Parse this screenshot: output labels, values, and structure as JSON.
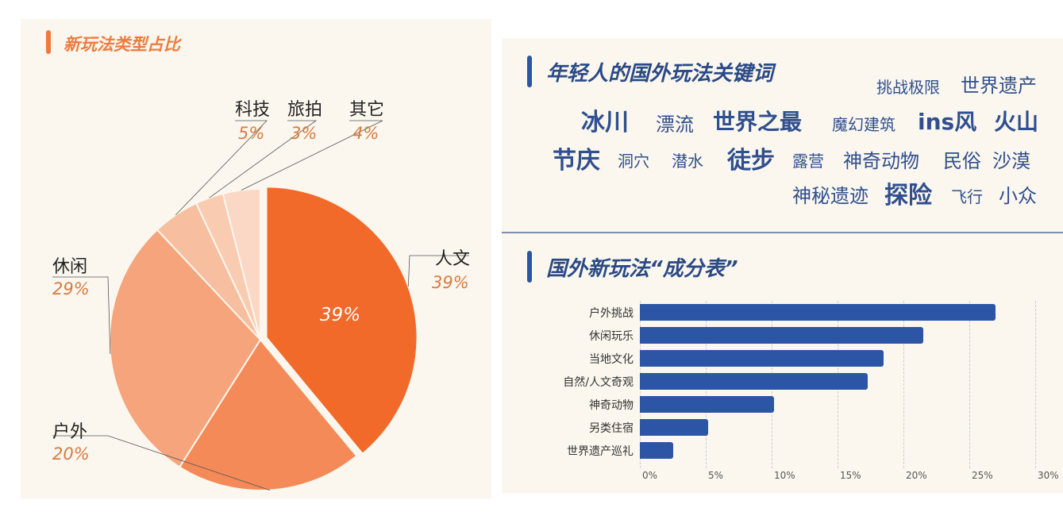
{
  "colors": {
    "pie_accent": "#f07a3c",
    "pie_label_pct": "#d97a3e",
    "bar_color": "#2d55a5",
    "kw_color": "#2f4f8f",
    "title_blue": "#2a4a86",
    "panel_bg": "#fbf7ee"
  },
  "left": {
    "title": "新玩法类型占比"
  },
  "right": {
    "keywords_title": "年轻人的国外玩法关键词",
    "keywords": [
      {
        "text": "挑战极限",
        "size": "s"
      },
      {
        "text": "世界遗产",
        "size": "m"
      },
      {
        "text": "冰川",
        "size": "xl"
      },
      {
        "text": "漂流",
        "size": "m"
      },
      {
        "text": "世界之最",
        "size": "l"
      },
      {
        "text": "魔幻建筑",
        "size": "s"
      },
      {
        "text": "ins风",
        "size": "l"
      },
      {
        "text": "火山",
        "size": "l"
      },
      {
        "text": "节庆",
        "size": "xl"
      },
      {
        "text": "洞穴",
        "size": "s"
      },
      {
        "text": "潜水",
        "size": "s"
      },
      {
        "text": "徒步",
        "size": "xl"
      },
      {
        "text": "露营",
        "size": "s"
      },
      {
        "text": "神奇动物",
        "size": "m"
      },
      {
        "text": "民俗",
        "size": "m"
      },
      {
        "text": "沙漠",
        "size": "m"
      },
      {
        "text": "神秘遗迹",
        "size": "m"
      },
      {
        "text": "探险",
        "size": "xl"
      },
      {
        "text": "飞行",
        "size": "s"
      },
      {
        "text": "小众",
        "size": "m"
      }
    ],
    "bar_title": "国外新玩法“成分表”"
  },
  "chart_data": [
    {
      "type": "pie",
      "title": "新玩法类型占比",
      "slices": [
        {
          "label": "人文",
          "value": 39,
          "display": "39%",
          "color": "#f26a2a"
        },
        {
          "label": "户外",
          "value": 20,
          "display": "20%",
          "color": "#f48a58"
        },
        {
          "label": "休闲",
          "value": 29,
          "display": "29%",
          "color": "#f6a47c"
        },
        {
          "label": "科技",
          "value": 5,
          "display": "5%",
          "color": "#f8bea0"
        },
        {
          "label": "旅拍",
          "value": 3,
          "display": "3%",
          "color": "#f9ccb2"
        },
        {
          "label": "其它",
          "value": 4,
          "display": "4%",
          "color": "#fad8c5"
        }
      ],
      "inner_label": "39%"
    },
    {
      "type": "bar",
      "orientation": "horizontal",
      "title": "国外新玩法“成分表”",
      "categories": [
        "户外挑战",
        "休闲玩乐",
        "当地文化",
        "自然/人文奇观",
        "神奇动物",
        "另类住宿",
        "世界遗产巡礼"
      ],
      "values": [
        27,
        21.5,
        18.5,
        17.3,
        10.2,
        5.2,
        2.5
      ],
      "xlim": [
        0,
        30
      ],
      "ticks": [
        "0%",
        "5%",
        "10%",
        "15%",
        "20%",
        "25%",
        "30%"
      ],
      "tick_values": [
        0,
        5,
        10,
        15,
        20,
        25,
        30
      ],
      "grid": true
    }
  ]
}
